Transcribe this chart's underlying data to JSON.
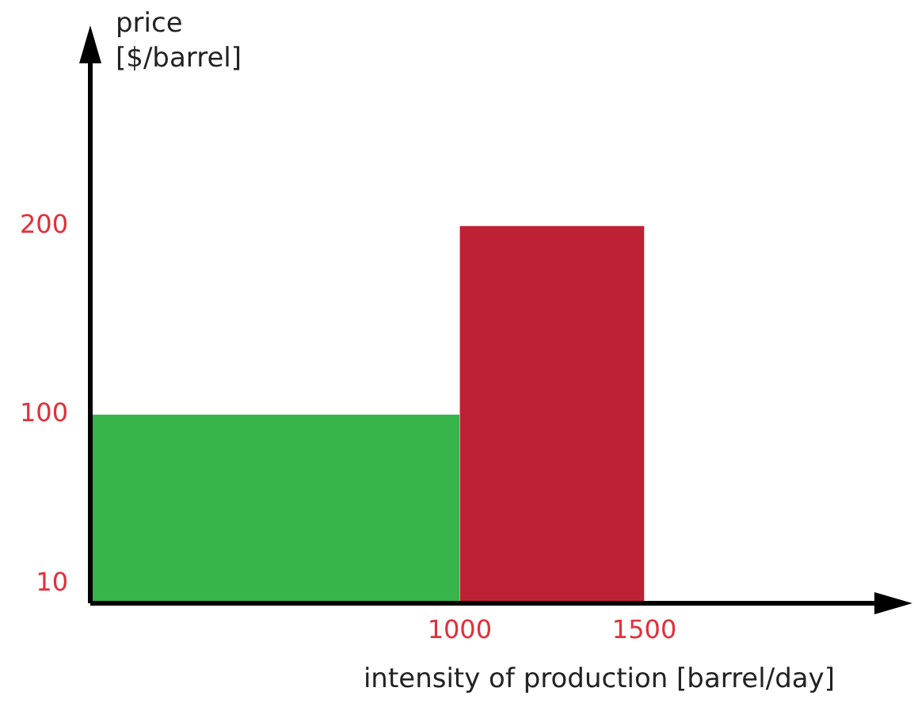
{
  "chart_data": {
    "type": "histogram",
    "xlabel": "intensity of production [barrel/day]",
    "ylabel": "price [$/barrel]",
    "bins": [
      0,
      1000,
      1500
    ],
    "values": [
      100,
      200
    ],
    "colors": [
      "#37b44a",
      "#be2133"
    ],
    "xlim": [
      0,
      2200
    ],
    "ylim": [
      0,
      300
    ],
    "xticks": [
      1000,
      1500
    ],
    "yticks": [
      10,
      100,
      200
    ],
    "grid": false,
    "legend": false
  }
}
